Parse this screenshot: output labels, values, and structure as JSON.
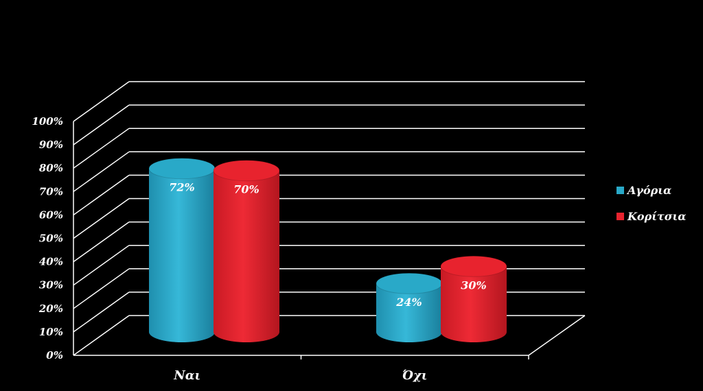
{
  "colors": {
    "background": "#000000",
    "grid": "#ffffff",
    "boys": "#29a9c8",
    "girls": "#e8232e"
  },
  "chart_data": {
    "type": "bar",
    "title": "",
    "xlabel": "",
    "ylabel": "",
    "categories": [
      "Ναι",
      "Όχι"
    ],
    "ylim": [
      0,
      100
    ],
    "yticks": [
      "0%",
      "10%",
      "20%",
      "30%",
      "40%",
      "50%",
      "60%",
      "70%",
      "80%",
      "90%",
      "100%"
    ],
    "grid": true,
    "legend_position": "right",
    "style": "3d-cylinder",
    "series": [
      {
        "name": "Αγόρια",
        "values": [
          72,
          24
        ],
        "labels": [
          "72%",
          "24%"
        ]
      },
      {
        "name": "Κορίτσια",
        "values": [
          70,
          30
        ],
        "labels": [
          "70%",
          "30%"
        ]
      }
    ]
  }
}
